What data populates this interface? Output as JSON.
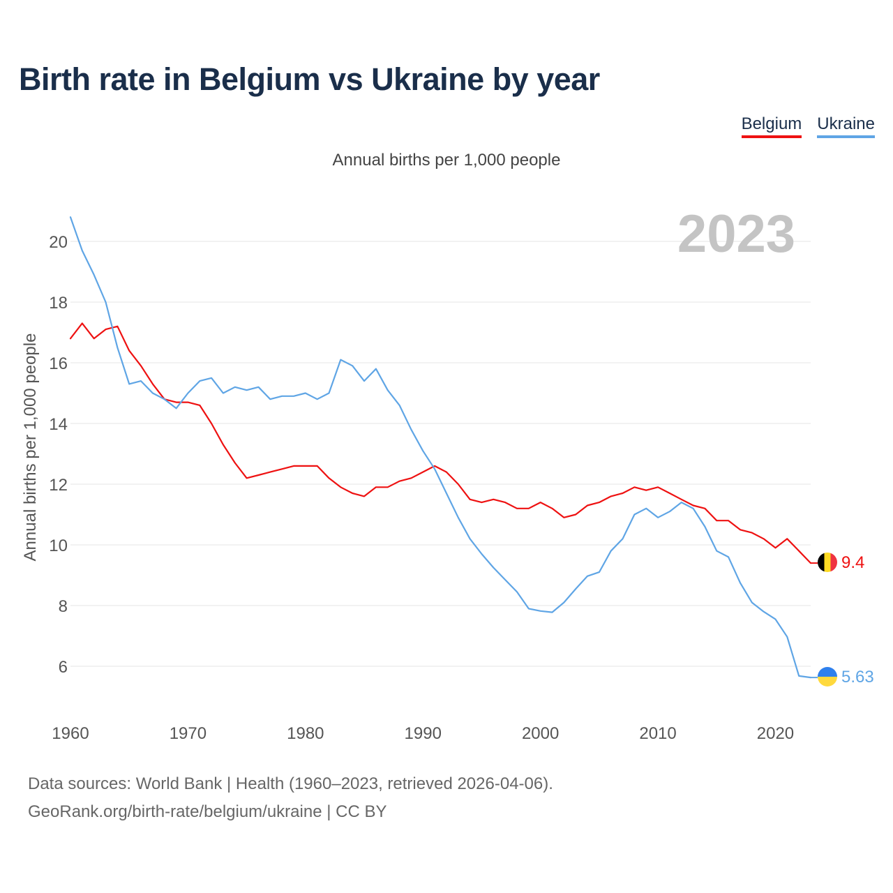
{
  "title": "Birth rate in Belgium vs Ukraine by year",
  "subtitle": "Annual births per 1,000 people",
  "legend": [
    {
      "name": "Belgium",
      "color": "#ee1111"
    },
    {
      "name": "Ukraine",
      "color": "#5fa5e5"
    }
  ],
  "year_watermark": "2023",
  "footer": {
    "line1": "Data sources: World Bank | Health (1960–2023, retrieved 2026-04-06).",
    "line2": "GeoRank.org/birth-rate/belgium/ukraine | CC BY"
  },
  "chart_data": {
    "type": "line",
    "title": "Birth rate in Belgium vs Ukraine by year",
    "ylabel": "Annual births per 1,000 people",
    "xlabel": "",
    "xlim": [
      1960,
      2023
    ],
    "ylim": [
      5,
      21
    ],
    "x_ticks": [
      1960,
      1970,
      1980,
      1990,
      2000,
      2010,
      2020
    ],
    "y_ticks": [
      6,
      8,
      10,
      12,
      14,
      16,
      18,
      20
    ],
    "grid": true,
    "series": [
      {
        "name": "Belgium",
        "color": "#ee1111",
        "end_label": "9.4",
        "x": [
          1960,
          1961,
          1962,
          1963,
          1964,
          1965,
          1966,
          1967,
          1968,
          1969,
          1970,
          1971,
          1972,
          1973,
          1974,
          1975,
          1976,
          1977,
          1978,
          1979,
          1980,
          1981,
          1982,
          1983,
          1984,
          1985,
          1986,
          1987,
          1988,
          1989,
          1990,
          1991,
          1992,
          1993,
          1994,
          1995,
          1996,
          1997,
          1998,
          1999,
          2000,
          2001,
          2002,
          2003,
          2004,
          2005,
          2006,
          2007,
          2008,
          2009,
          2010,
          2011,
          2012,
          2013,
          2014,
          2015,
          2016,
          2017,
          2018,
          2019,
          2020,
          2021,
          2022,
          2023
        ],
        "values": [
          16.8,
          17.3,
          16.8,
          17.1,
          17.2,
          16.4,
          15.9,
          15.3,
          14.8,
          14.7,
          14.7,
          14.6,
          14.0,
          13.3,
          12.7,
          12.2,
          12.3,
          12.4,
          12.5,
          12.6,
          12.6,
          12.6,
          12.2,
          11.9,
          11.7,
          11.6,
          11.9,
          11.9,
          12.1,
          12.2,
          12.4,
          12.6,
          12.4,
          12.0,
          11.5,
          11.4,
          11.5,
          11.4,
          11.2,
          11.2,
          11.4,
          11.2,
          10.9,
          11.0,
          11.3,
          11.4,
          11.6,
          11.7,
          11.9,
          11.8,
          11.9,
          11.7,
          11.5,
          11.3,
          11.2,
          10.8,
          10.8,
          10.5,
          10.4,
          10.2,
          9.9,
          10.2,
          9.8,
          9.4
        ]
      },
      {
        "name": "Ukraine",
        "color": "#5fa5e5",
        "end_label": "5.63",
        "x": [
          1960,
          1961,
          1962,
          1963,
          1964,
          1965,
          1966,
          1967,
          1968,
          1969,
          1970,
          1971,
          1972,
          1973,
          1974,
          1975,
          1976,
          1977,
          1978,
          1979,
          1980,
          1981,
          1982,
          1983,
          1984,
          1985,
          1986,
          1987,
          1988,
          1989,
          1990,
          1991,
          1992,
          1993,
          1994,
          1995,
          1996,
          1997,
          1998,
          1999,
          2000,
          2001,
          2002,
          2003,
          2004,
          2005,
          2006,
          2007,
          2008,
          2009,
          2010,
          2011,
          2012,
          2013,
          2014,
          2015,
          2016,
          2017,
          2018,
          2019,
          2020,
          2021,
          2022,
          2023
        ],
        "values": [
          20.8,
          19.7,
          18.9,
          18.0,
          16.5,
          15.3,
          15.4,
          15.0,
          14.8,
          14.5,
          15.0,
          15.4,
          15.5,
          15.0,
          15.2,
          15.1,
          15.2,
          14.8,
          14.9,
          14.9,
          15.0,
          14.8,
          15.0,
          16.1,
          15.9,
          15.4,
          15.8,
          15.1,
          14.6,
          13.8,
          13.1,
          12.5,
          11.7,
          10.9,
          10.2,
          9.7,
          9.25,
          8.85,
          8.45,
          7.9,
          7.82,
          7.78,
          8.1,
          8.55,
          8.97,
          9.1,
          9.8,
          10.2,
          11.0,
          11.2,
          10.9,
          11.1,
          11.4,
          11.2,
          10.6,
          9.8,
          9.6,
          8.75,
          8.1,
          7.8,
          7.55,
          6.97,
          5.68,
          5.63
        ]
      }
    ]
  }
}
